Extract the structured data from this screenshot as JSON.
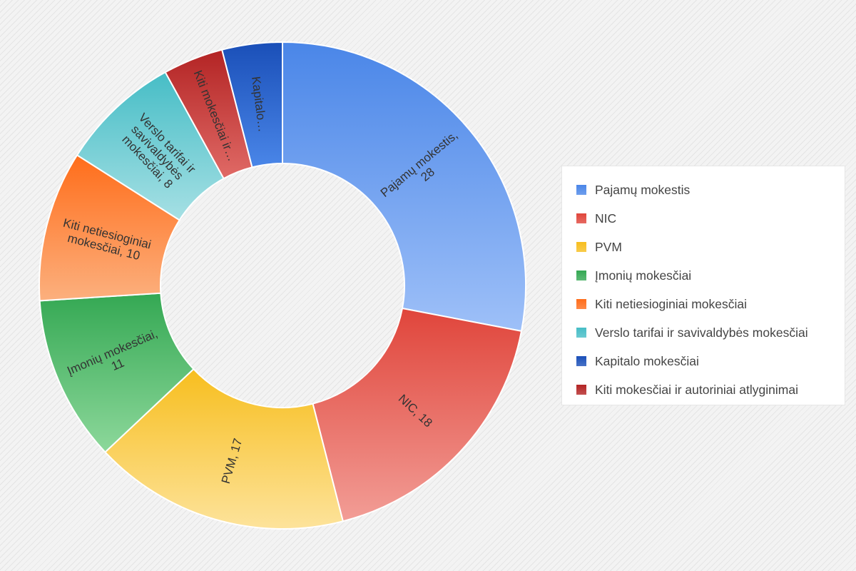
{
  "chart_data": {
    "type": "pie",
    "donut": true,
    "series": [
      {
        "name": "Pajamų mokestis",
        "value": 28,
        "slice_label": [
          "Pajamų mokestis,",
          "28"
        ],
        "color": "#4a86e8",
        "color_light": "#9ec0f8"
      },
      {
        "name": "NIC",
        "value": 18,
        "slice_label": [
          "NIC, 18"
        ],
        "color": "#e0453b",
        "color_light": "#f29d96"
      },
      {
        "name": "PVM",
        "value": 17,
        "slice_label": [
          "PVM, 17"
        ],
        "color": "#f7be1e",
        "color_light": "#fde39b"
      },
      {
        "name": "Įmonių mokesčiai",
        "value": 11,
        "slice_label": [
          "Įmonių mokesčiai,",
          "11"
        ],
        "color": "#34a853",
        "color_light": "#8dd89b"
      },
      {
        "name": "Kiti netiesioginiai mokesčiai",
        "value": 10,
        "slice_label": [
          "Kiti netiesioginiai",
          "mokesčiai, 10"
        ],
        "color": "#ff6d1a",
        "color_light": "#fcb07e"
      },
      {
        "name": "Verslo tarifai ir savivaldybės mokesčiai",
        "value": 8,
        "slice_label": [
          "Verslo tarifai ir",
          "savivaldybės",
          "mokesčiai, 8"
        ],
        "color": "#46bdc6",
        "color_light": "#a6e0e4"
      },
      {
        "name": "Kiti mokesčiai ir autoriniai atlyginimai",
        "value": 4,
        "slice_label": [
          "Kiti mokesčiai ir…"
        ],
        "color": "#b32424",
        "color_light": "#e06a66"
      },
      {
        "name": "Kapitalo mokesčiai",
        "value": 4,
        "slice_label": [
          "Kapitalo…"
        ],
        "color": "#1a4fb8",
        "color_light": "#4a86e8"
      }
    ],
    "legend": {
      "position": "right",
      "items": [
        {
          "label": "Pajamų mokestis",
          "color": "#4a86e8"
        },
        {
          "label": "NIC",
          "color": "#e0453b"
        },
        {
          "label": "PVM",
          "color": "#f7be1e"
        },
        {
          "label": "Įmonių mokesčiai",
          "color": "#34a853"
        },
        {
          "label": "Kiti netiesioginiai mokesčiai",
          "color": "#ff6d1a"
        },
        {
          "label": "Verslo tarifai ir savivaldybės mokesčiai",
          "color": "#46bdc6"
        },
        {
          "label": "Kapitalo mokesčiai",
          "color": "#1a4fb8"
        },
        {
          "label": "Kiti mokesčiai ir autoriniai atlyginimai",
          "color": "#b32424"
        }
      ]
    }
  }
}
